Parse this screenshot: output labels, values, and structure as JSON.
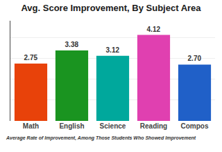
{
  "chart_data": {
    "type": "bar",
    "title": "Avg. Score Improvement, By Subject Area",
    "annotations": [
      "Average Rate of Improvement, Among Those Students Who Showed Improvement"
    ],
    "categories": [
      "Math",
      "English",
      "Science",
      "Reading",
      "Compos"
    ],
    "values": [
      2.75,
      3.38,
      3.12,
      4.12,
      2.7
    ],
    "value_labels": [
      "2.75",
      "3.38",
      "3.12",
      "4.12",
      "2.70"
    ],
    "colors": [
      "#E8420A",
      "#1A9420",
      "#00A89C",
      "#E040B0",
      "#2060C8"
    ],
    "ylim": [
      0,
      4.8
    ],
    "yticks": [
      0,
      1,
      2,
      3,
      4
    ],
    "grid": true,
    "data_labels": true,
    "tick_labels": "x"
  }
}
